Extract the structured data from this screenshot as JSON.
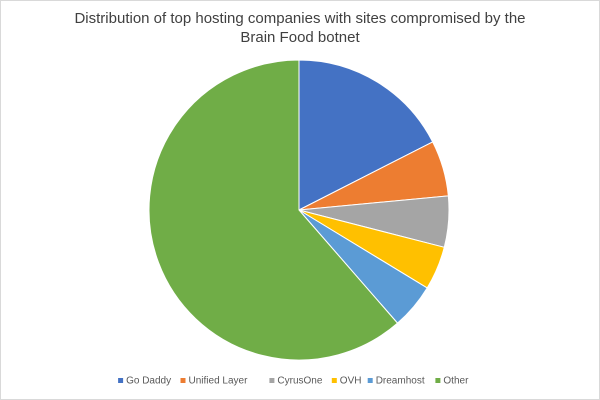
{
  "chart_data": {
    "type": "pie",
    "title_lines": [
      "Distribution of top hosting companies with sites compromised by the",
      "Brain Food botnet"
    ],
    "categories": [
      "Go Daddy",
      "Unified Layer",
      "CyrusOne",
      "OVH",
      "Dreamhost",
      "Other"
    ],
    "values": [
      17.5,
      6,
      5.5,
      4.7,
      4.9,
      61.4
    ],
    "colors": [
      "#4472c4",
      "#ed7d31",
      "#a5a5a5",
      "#ffc000",
      "#5b9bd5",
      "#70ad47"
    ],
    "legend": "bottom"
  }
}
